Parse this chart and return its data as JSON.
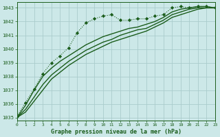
{
  "title": "Graphe pression niveau de la mer (hPa)",
  "bg_color": "#cce8e8",
  "grid_color": "#aacccc",
  "line_color": "#1a5c1a",
  "xlim": [
    0,
    23
  ],
  "ylim": [
    1034.8,
    1043.4
  ],
  "yticks": [
    1035,
    1036,
    1037,
    1038,
    1039,
    1040,
    1041,
    1042,
    1043
  ],
  "xticks": [
    0,
    1,
    2,
    3,
    4,
    5,
    6,
    7,
    8,
    9,
    10,
    11,
    12,
    13,
    14,
    15,
    16,
    17,
    18,
    19,
    20,
    21,
    22,
    23
  ],
  "series_marker": {
    "x": [
      0,
      1,
      2,
      3,
      4,
      5,
      6,
      7,
      8,
      9,
      10,
      11,
      12,
      13,
      14,
      15,
      16,
      17,
      18,
      19,
      20,
      21,
      22,
      23
    ],
    "y": [
      1035.1,
      1036.1,
      1037.1,
      1038.2,
      1039.0,
      1039.5,
      1040.1,
      1041.2,
      1041.9,
      1042.2,
      1042.4,
      1042.5,
      1042.1,
      1042.1,
      1042.2,
      1042.2,
      1042.4,
      1042.5,
      1043.0,
      1043.1,
      1043.0,
      1043.1,
      1043.1,
      1043.0
    ]
  },
  "series_smooth": [
    [
      1035.0,
      1035.4,
      1036.2,
      1037.0,
      1037.8,
      1038.3,
      1038.8,
      1039.2,
      1039.6,
      1039.9,
      1040.2,
      1040.5,
      1040.7,
      1040.9,
      1041.1,
      1041.3,
      1041.6,
      1041.9,
      1042.3,
      1042.5,
      1042.7,
      1042.9,
      1043.0,
      1043.0
    ],
    [
      1035.0,
      1035.6,
      1036.5,
      1037.4,
      1038.1,
      1038.6,
      1039.1,
      1039.5,
      1039.9,
      1040.2,
      1040.5,
      1040.7,
      1041.0,
      1041.2,
      1041.4,
      1041.5,
      1041.8,
      1042.1,
      1042.5,
      1042.7,
      1042.9,
      1043.0,
      1043.0,
      1043.0
    ],
    [
      1035.0,
      1035.9,
      1037.0,
      1038.0,
      1038.6,
      1039.1,
      1039.5,
      1039.9,
      1040.3,
      1040.6,
      1040.9,
      1041.1,
      1041.3,
      1041.5,
      1041.6,
      1041.8,
      1042.0,
      1042.3,
      1042.7,
      1042.9,
      1043.0,
      1043.1,
      1043.1,
      1043.0
    ]
  ]
}
